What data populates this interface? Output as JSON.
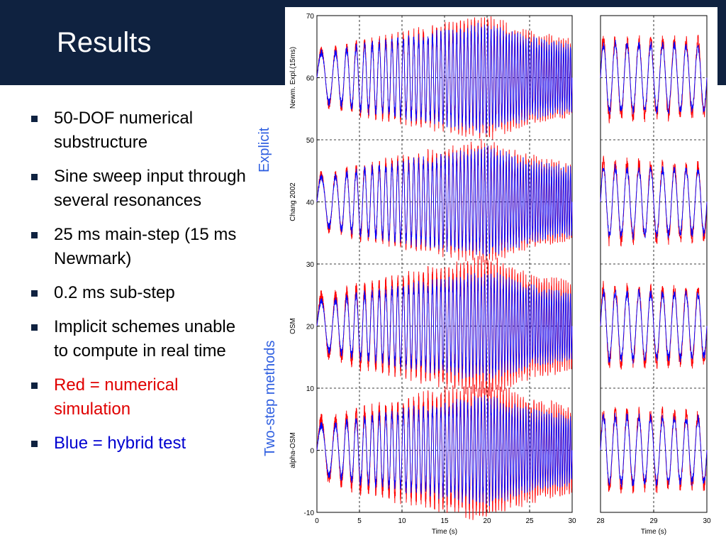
{
  "slide": {
    "title": "Results",
    "bullets": [
      {
        "text": "50-DOF numerical substructure",
        "color": "#000000"
      },
      {
        "text": "Sine sweep input through several resonances",
        "color": "#000000"
      },
      {
        "text": "25 ms main-step (15 ms Newmark)",
        "color": "#000000"
      },
      {
        "text": "0.2 ms sub-step",
        "color": "#000000"
      },
      {
        "text": "Implicit schemes unable to compute in real time",
        "color": "#000000"
      },
      {
        "text": "Red = numerical simulation",
        "color": "#e00000"
      },
      {
        "text": "Blue = hybrid test",
        "color": "#0000d0"
      }
    ],
    "group_labels": {
      "explicit": "Explicit",
      "two_step": "Two-step methods"
    }
  },
  "colors": {
    "header": "#0f2240",
    "group_label": "#2f5fe0",
    "numerical": "#ff0000",
    "hybrid": "#0000ff"
  },
  "chart_data": [
    {
      "type": "line",
      "panel": "main",
      "xlabel": "Time (s)",
      "xlim": [
        0,
        30
      ],
      "ylim": [
        -10,
        70
      ],
      "x_ticks": [
        0,
        5,
        10,
        15,
        20,
        25,
        30
      ],
      "y_ticks": [
        -10,
        0,
        10,
        20,
        30,
        40,
        50,
        60,
        70
      ],
      "grid": true,
      "traces": [
        {
          "label": "Newm. Expl.(15ms)",
          "offset": 60
        },
        {
          "label": "Chang 2002",
          "offset": 40
        },
        {
          "label": "OSM",
          "offset": 20
        },
        {
          "label": "alpha-OSM",
          "offset": 0
        }
      ],
      "series_colors": {
        "numerical": "#ff0000",
        "hybrid": "#0000ff"
      },
      "amplitude_envelope": {
        "t": [
          0,
          2,
          5,
          10,
          15,
          20,
          25,
          30
        ],
        "a": [
          4,
          4,
          5,
          6,
          7,
          8,
          6,
          5
        ]
      }
    },
    {
      "type": "line",
      "panel": "zoom",
      "xlabel": "Time (s)",
      "xlim": [
        28,
        30
      ],
      "ylim": [
        -10,
        70
      ],
      "x_ticks": [
        28,
        29,
        30
      ],
      "grid": true
    }
  ]
}
